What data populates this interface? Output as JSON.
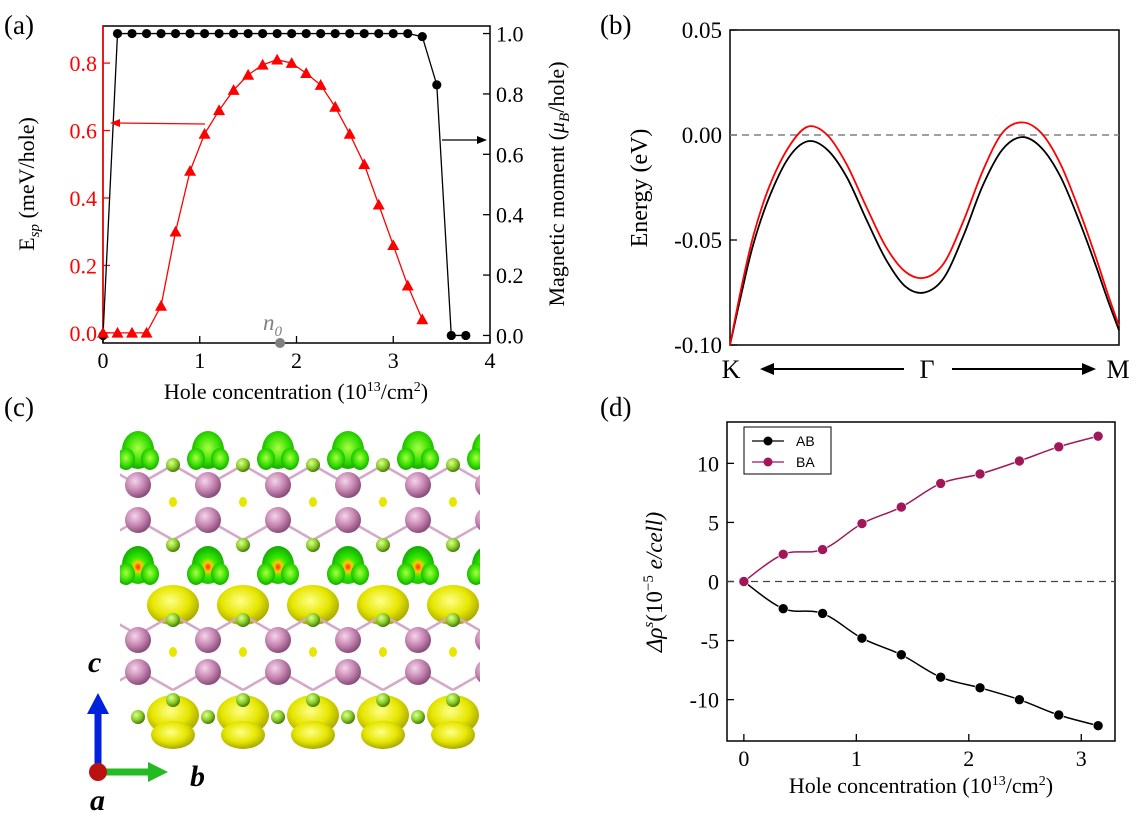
{
  "colors": {
    "red": "#ff0000",
    "black": "#000000",
    "magenta": "#a0185a",
    "gray": "#808080",
    "iso_green": "#22dd00",
    "iso_yellow": "#e6e600",
    "atom_pink": "#c888b4",
    "atom_green": "#88cc22",
    "axis_blue": "#0022dd",
    "axis_green": "#22bb22",
    "axis_red": "#bb1111"
  },
  "chart_data": [
    {
      "panel_label": "(a)",
      "type": "line",
      "xlabel": "Hole concentration (10",
      "xlabel_sup": "13",
      "xlabel_tail": "/cm",
      "xlabel_sup2": "2",
      "xlabel_close": ")",
      "xlim": [
        0,
        4
      ],
      "x_ticks": [
        "0",
        "1",
        "2",
        "3",
        "4"
      ],
      "left_axis": {
        "label_main": "E",
        "label_sub": "sp",
        "label_tail": " (meV/hole)",
        "ylim": [
          -0.03,
          0.91
        ],
        "ticks": [
          "0.0",
          "0.2",
          "0.4",
          "0.6",
          "0.8"
        ],
        "tick_values": [
          0.0,
          0.2,
          0.4,
          0.6,
          0.8
        ],
        "color": "#ff0000"
      },
      "right_axis": {
        "label_main": "Magnetic moment (",
        "label_mu": "μ",
        "label_sub": "B",
        "label_tail": "/hole)",
        "ylim": [
          -0.025,
          1.025
        ],
        "ticks": [
          "0.0",
          "0.2",
          "0.4",
          "0.6",
          "0.8",
          "1.0"
        ],
        "tick_values": [
          0.0,
          0.2,
          0.4,
          0.6,
          0.8,
          1.0
        ]
      },
      "annotation": {
        "text": "n",
        "sub": "0",
        "x": 1.83
      },
      "series": [
        {
          "name": "E_sp",
          "axis": "left",
          "marker": "triangle",
          "x": [
            0.0,
            0.15,
            0.3,
            0.45,
            0.6,
            0.75,
            0.9,
            1.05,
            1.2,
            1.35,
            1.5,
            1.65,
            1.8,
            1.95,
            2.1,
            2.25,
            2.4,
            2.55,
            2.7,
            2.85,
            3.0,
            3.15,
            3.3
          ],
          "values": [
            0.0,
            0.0,
            0.0,
            0.0,
            0.08,
            0.3,
            0.48,
            0.59,
            0.66,
            0.72,
            0.765,
            0.795,
            0.81,
            0.8,
            0.77,
            0.735,
            0.67,
            0.59,
            0.5,
            0.38,
            0.26,
            0.14,
            0.04
          ]
        },
        {
          "name": "Magnetic moment",
          "axis": "right",
          "marker": "circle",
          "x": [
            0.0,
            0.15,
            0.3,
            0.45,
            0.6,
            0.75,
            0.9,
            1.05,
            1.2,
            1.35,
            1.5,
            1.65,
            1.8,
            1.95,
            2.1,
            2.25,
            2.4,
            2.55,
            2.7,
            2.85,
            3.0,
            3.15,
            3.3,
            3.45,
            3.6,
            3.75
          ],
          "values": [
            0.0,
            1.0,
            1.0,
            1.0,
            1.0,
            1.0,
            1.0,
            1.0,
            1.0,
            1.0,
            1.0,
            1.0,
            1.0,
            1.0,
            1.0,
            1.0,
            1.0,
            1.0,
            1.0,
            1.0,
            1.0,
            1.0,
            0.99,
            0.83,
            0.0,
            0.0
          ]
        }
      ]
    },
    {
      "panel_label": "(b)",
      "type": "line",
      "ylabel": "Energy (eV)",
      "ylim": [
        -0.1,
        0.05
      ],
      "y_ticks": [
        "-0.10",
        "-0.05",
        "0.00",
        "0.05"
      ],
      "y_tick_values": [
        -0.1,
        -0.05,
        0.0,
        0.05
      ],
      "xlim": [
        0,
        1
      ],
      "k_labels": [
        "K",
        "Γ",
        "M"
      ],
      "reference_line": 0.0,
      "series": [
        {
          "name": "black band",
          "x": [
            0.0,
            0.03,
            0.06,
            0.1,
            0.15,
            0.2,
            0.25,
            0.3,
            0.35,
            0.4,
            0.45,
            0.5,
            0.55,
            0.6,
            0.65,
            0.7,
            0.75,
            0.8,
            0.85,
            0.9,
            0.94,
            0.97,
            1.0
          ],
          "values": [
            -0.1,
            -0.075,
            -0.052,
            -0.03,
            -0.011,
            -0.003,
            -0.007,
            -0.02,
            -0.04,
            -0.059,
            -0.072,
            -0.075,
            -0.068,
            -0.048,
            -0.024,
            -0.007,
            -0.001,
            -0.006,
            -0.02,
            -0.042,
            -0.062,
            -0.078,
            -0.093
          ]
        },
        {
          "name": "red band",
          "x": [
            0.0,
            0.03,
            0.06,
            0.1,
            0.15,
            0.2,
            0.25,
            0.3,
            0.35,
            0.4,
            0.45,
            0.5,
            0.55,
            0.6,
            0.65,
            0.7,
            0.75,
            0.8,
            0.85,
            0.9,
            0.94,
            0.97,
            1.0
          ],
          "values": [
            -0.1,
            -0.072,
            -0.048,
            -0.025,
            -0.006,
            0.004,
            0.0,
            -0.014,
            -0.034,
            -0.053,
            -0.065,
            -0.068,
            -0.061,
            -0.041,
            -0.017,
            0.001,
            0.006,
            0.001,
            -0.014,
            -0.037,
            -0.058,
            -0.075,
            -0.091
          ]
        }
      ]
    },
    {
      "panel_label": "(d)",
      "type": "line",
      "xlabel": "Hole concentration (10",
      "xlabel_sup": "13",
      "xlabel_tail": "/cm",
      "xlabel_sup2": "2",
      "xlabel_close": ")",
      "ylabel_main": "Δρ",
      "ylabel_sup": "s",
      "ylabel_mid": "(10",
      "ylabel_exp": "−5",
      "ylabel_tail": " e/cell)",
      "xlim": [
        -0.15,
        3.3
      ],
      "ylim": [
        -13.5,
        13.5
      ],
      "x_ticks": [
        "0",
        "1",
        "2",
        "3"
      ],
      "x_tick_values": [
        0,
        1,
        2,
        3
      ],
      "y_ticks": [
        "-10",
        "-5",
        "0",
        "5",
        "10"
      ],
      "y_tick_values": [
        -10,
        -5,
        0,
        5,
        10
      ],
      "reference_line": 0.0,
      "series": [
        {
          "name": "AB",
          "x": [
            0.0,
            0.35,
            0.7,
            1.05,
            1.4,
            1.75,
            2.1,
            2.45,
            2.8,
            3.15
          ],
          "values": [
            0.0,
            -2.3,
            -2.7,
            -4.8,
            -6.2,
            -8.1,
            -9.0,
            -10.0,
            -11.3,
            -12.2
          ]
        },
        {
          "name": "BA",
          "x": [
            0.0,
            0.35,
            0.7,
            1.05,
            1.4,
            1.75,
            2.1,
            2.45,
            2.8,
            3.15
          ],
          "values": [
            0.0,
            2.3,
            2.7,
            4.9,
            6.3,
            8.3,
            9.1,
            10.2,
            11.4,
            12.3
          ]
        }
      ],
      "legend": [
        "AB",
        "BA"
      ]
    }
  ],
  "panel_c": {
    "panel_label": "(c)",
    "axis_labels": {
      "c": "c",
      "b": "b",
      "a": "a"
    }
  }
}
